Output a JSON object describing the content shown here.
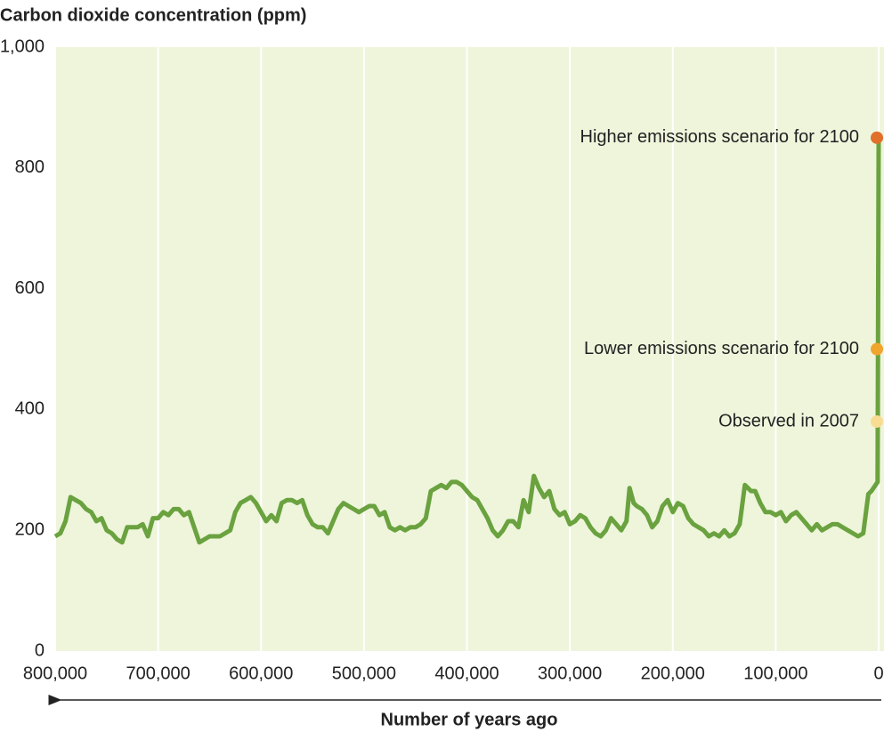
{
  "chart_data": {
    "type": "line",
    "title": "Carbon dioxide concentration (ppm)",
    "x_label": "Number of years ago",
    "xlim": [
      800000,
      0
    ],
    "ylim": [
      0,
      1000
    ],
    "xticks": [
      {
        "value": 800000,
        "label": "800,000"
      },
      {
        "value": 700000,
        "label": "700,000"
      },
      {
        "value": 600000,
        "label": "600,000"
      },
      {
        "value": 500000,
        "label": "500,000"
      },
      {
        "value": 400000,
        "label": "400,000"
      },
      {
        "value": 300000,
        "label": "300,000"
      },
      {
        "value": 200000,
        "label": "200,000"
      },
      {
        "value": 100000,
        "label": "100,000"
      },
      0
    ],
    "yticks": [
      0,
      200,
      400,
      600,
      800,
      {
        "value": 1000,
        "label": "1,000"
      }
    ],
    "grid": "x",
    "background": "#eef5db",
    "series": [
      {
        "color": "#6aa23f",
        "x": [
          800000,
          795000,
          790000,
          785000,
          780000,
          775000,
          770000,
          765000,
          760000,
          755000,
          750000,
          745000,
          740000,
          735000,
          730000,
          725000,
          720000,
          715000,
          710000,
          705000,
          700000,
          695000,
          690000,
          685000,
          680000,
          675000,
          670000,
          665000,
          660000,
          655000,
          650000,
          645000,
          640000,
          635000,
          630000,
          625000,
          620000,
          615000,
          610000,
          605000,
          600000,
          595000,
          590000,
          585000,
          580000,
          575000,
          570000,
          565000,
          560000,
          555000,
          550000,
          545000,
          540000,
          535000,
          530000,
          525000,
          520000,
          515000,
          510000,
          505000,
          500000,
          495000,
          490000,
          485000,
          480000,
          475000,
          470000,
          465000,
          460000,
          455000,
          450000,
          445000,
          440000,
          435000,
          430000,
          425000,
          420000,
          415000,
          410000,
          405000,
          400000,
          395000,
          390000,
          385000,
          380000,
          375000,
          370000,
          365000,
          360000,
          355000,
          350000,
          345000,
          340000,
          335000,
          330000,
          325000,
          320000,
          315000,
          310000,
          305000,
          300000,
          295000,
          290000,
          285000,
          280000,
          275000,
          270000,
          265000,
          260000,
          255000,
          250000,
          245000,
          242000,
          238000,
          235000,
          230000,
          225000,
          220000,
          215000,
          210000,
          205000,
          200000,
          195000,
          190000,
          185000,
          180000,
          175000,
          170000,
          165000,
          160000,
          155000,
          150000,
          145000,
          140000,
          135000,
          130000,
          127000,
          124000,
          120000,
          115000,
          110000,
          105000,
          100000,
          95000,
          90000,
          85000,
          80000,
          75000,
          70000,
          65000,
          60000,
          55000,
          50000,
          45000,
          40000,
          35000,
          30000,
          25000,
          20000,
          15000,
          10000,
          7000,
          5000,
          3000,
          1000,
          0
        ],
        "values": [
          190,
          195,
          215,
          255,
          250,
          245,
          235,
          230,
          215,
          220,
          200,
          195,
          185,
          180,
          205,
          205,
          205,
          210,
          190,
          220,
          220,
          230,
          225,
          235,
          235,
          225,
          230,
          205,
          180,
          185,
          190,
          190,
          190,
          195,
          200,
          230,
          245,
          250,
          255,
          245,
          230,
          215,
          225,
          215,
          245,
          250,
          250,
          245,
          250,
          225,
          210,
          205,
          205,
          195,
          215,
          235,
          245,
          240,
          235,
          230,
          235,
          240,
          240,
          225,
          230,
          205,
          200,
          205,
          200,
          205,
          205,
          210,
          220,
          265,
          270,
          275,
          270,
          280,
          280,
          275,
          265,
          255,
          250,
          235,
          220,
          200,
          190,
          200,
          215,
          215,
          205,
          250,
          230,
          290,
          270,
          255,
          265,
          235,
          225,
          230,
          210,
          215,
          225,
          220,
          205,
          195,
          190,
          200,
          220,
          210,
          200,
          215,
          270,
          245,
          240,
          235,
          225,
          205,
          215,
          240,
          250,
          230,
          245,
          240,
          220,
          210,
          205,
          200,
          190,
          195,
          190,
          200,
          190,
          195,
          210,
          275,
          270,
          265,
          265,
          245,
          230,
          230,
          225,
          230,
          215,
          225,
          230,
          220,
          210,
          200,
          210,
          200,
          205,
          210,
          210,
          205,
          200,
          195,
          190,
          195,
          260,
          265,
          270,
          275,
          280,
          850
        ]
      }
    ],
    "annotations": [
      {
        "label": "Higher emissions scenario for 2100",
        "x": 0,
        "y": 850,
        "color": "#e0702a"
      },
      {
        "label": "Lower emissions scenario for 2100",
        "x": 0,
        "y": 500,
        "color": "#f0a52c"
      },
      {
        "label": "Observed in 2007",
        "x": 0,
        "y": 380,
        "color": "#f8dc92"
      }
    ]
  }
}
